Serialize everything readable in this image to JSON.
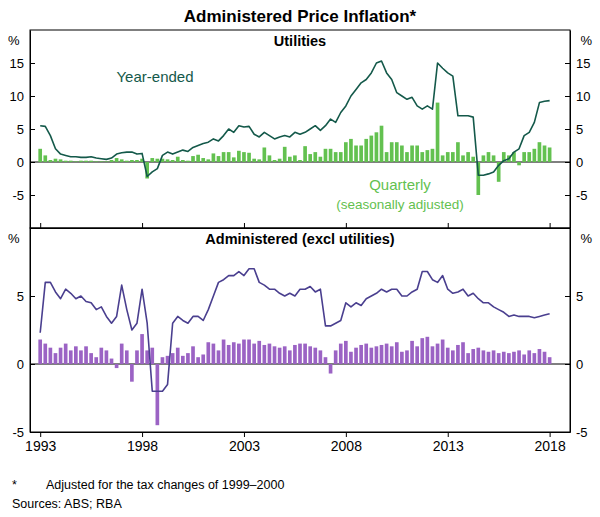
{
  "title": "Administered Price Inflation*",
  "footnote": {
    "marker": "*",
    "text": "Adjusted for the tax changes of 1999–2000"
  },
  "sources": "Sources: ABS; RBA",
  "chart_data": [
    {
      "type": "line",
      "title": "Utilities",
      "ylabel": "%",
      "grid": false,
      "tick_labels": "y",
      "xlim": [
        1992.5,
        2019
      ],
      "xticks": [
        1993,
        1998,
        2003,
        2008,
        2013,
        2018
      ],
      "ylim": [
        -10,
        20
      ],
      "yticks": [
        -5,
        0,
        5,
        10,
        15
      ],
      "x": [
        1993,
        1993.25,
        1993.5,
        1993.75,
        1994,
        1994.25,
        1994.5,
        1994.75,
        1995,
        1995.25,
        1995.5,
        1995.75,
        1996,
        1996.25,
        1996.5,
        1996.75,
        1997,
        1997.25,
        1997.5,
        1997.75,
        1998,
        1998.25,
        1998.5,
        1998.75,
        1999,
        1999.25,
        1999.5,
        1999.75,
        2000,
        2000.25,
        2000.5,
        2000.75,
        2001,
        2001.25,
        2001.5,
        2001.75,
        2002,
        2002.25,
        2002.5,
        2002.75,
        2003,
        2003.25,
        2003.5,
        2003.75,
        2004,
        2004.25,
        2004.5,
        2004.75,
        2005,
        2005.25,
        2005.5,
        2005.75,
        2006,
        2006.25,
        2006.5,
        2006.75,
        2007,
        2007.25,
        2007.5,
        2007.75,
        2008,
        2008.25,
        2008.5,
        2008.75,
        2009,
        2009.25,
        2009.5,
        2009.75,
        2010,
        2010.25,
        2010.5,
        2010.75,
        2011,
        2011.25,
        2011.5,
        2011.75,
        2012,
        2012.25,
        2012.5,
        2012.75,
        2013,
        2013.25,
        2013.5,
        2013.75,
        2014,
        2014.25,
        2014.5,
        2014.75,
        2015,
        2015.25,
        2015.5,
        2015.75,
        2016,
        2016.25,
        2016.5,
        2016.75,
        2017,
        2017.25,
        2017.5,
        2017.75,
        2018
      ],
      "series": [
        {
          "name": "Year-ended",
          "type": "line",
          "color": "#14594a",
          "values": [
            5.5,
            5.4,
            4.0,
            2.0,
            1.2,
            1.0,
            0.8,
            0.8,
            0.7,
            0.7,
            0.8,
            0.6,
            0.5,
            0.4,
            0.6,
            1.2,
            1.4,
            1.5,
            1.5,
            1.2,
            1.3,
            -2.2,
            -1.5,
            -1.0,
            1.0,
            1.5,
            1.2,
            1.5,
            1.8,
            1.6,
            2.2,
            2.5,
            2.8,
            3.0,
            3.5,
            3.2,
            4.0,
            5.0,
            4.5,
            5.5,
            5.3,
            5.4,
            4.2,
            3.8,
            4.5,
            4.0,
            3.5,
            3.8,
            4.0,
            3.8,
            4.5,
            4.2,
            4.5,
            5.0,
            5.5,
            4.8,
            5.5,
            6.5,
            6.0,
            7.5,
            8.5,
            10.0,
            11.0,
            12.0,
            12.5,
            13.5,
            15.0,
            15.3,
            13.5,
            12.5,
            10.5,
            10.0,
            9.5,
            9.8,
            8.5,
            8.0,
            8.5,
            8.0,
            15.0,
            14.2,
            13.5,
            13.0,
            7.0,
            7.0,
            7.0,
            6.8,
            -2.0,
            -2.0,
            -1.8,
            -1.5,
            -0.5,
            0.2,
            0.5,
            1.5,
            2.0,
            4.0,
            4.5,
            6.0,
            9.0,
            9.2,
            9.3
          ]
        },
        {
          "name": "Quarterly (seasonally adjusted)",
          "type": "bar",
          "color": "#63c150",
          "values": [
            2.0,
            1.0,
            0.3,
            0.5,
            0.4,
            0.2,
            0.2,
            0.1,
            0.2,
            0.2,
            0.2,
            0.1,
            0.1,
            0.1,
            0.3,
            0.6,
            0.4,
            0.2,
            0.3,
            0.3,
            0.5,
            -2.5,
            0.6,
            0.5,
            0.5,
            0.4,
            0.3,
            0.8,
            0.3,
            0.2,
            0.9,
            1.1,
            0.6,
            0.4,
            1.3,
            0.9,
            1.5,
            1.5,
            0.7,
            1.7,
            1.5,
            1.4,
            0.5,
            0.4,
            2.2,
            1.0,
            0.3,
            0.5,
            2.3,
            0.8,
            1.0,
            0.3,
            2.4,
            1.2,
            1.5,
            0.8,
            2.0,
            2.0,
            1.5,
            1.5,
            3.0,
            3.5,
            2.5,
            2.5,
            3.5,
            4.0,
            4.5,
            5.5,
            1.5,
            3.0,
            3.0,
            2.5,
            1.5,
            2.5,
            2.5,
            1.5,
            1.8,
            2.0,
            9.0,
            1.0,
            1.5,
            1.5,
            3.0,
            1.0,
            1.5,
            0.8,
            -5.0,
            1.0,
            1.5,
            1.0,
            -3.0,
            1.5,
            1.0,
            1.5,
            -0.5,
            1.5,
            1.5,
            2.0,
            3.0,
            2.5,
            2.2
          ]
        }
      ]
    },
    {
      "type": "line",
      "title": "Administered (excl utilities)",
      "ylabel": "%",
      "grid": false,
      "xlim": [
        1992.5,
        2019
      ],
      "xticks": [
        1993,
        1998,
        2003,
        2008,
        2013,
        2018
      ],
      "ylim": [
        -5,
        10
      ],
      "yticks": [
        -5,
        0,
        5
      ],
      "x": [
        1993,
        1993.25,
        1993.5,
        1993.75,
        1994,
        1994.25,
        1994.5,
        1994.75,
        1995,
        1995.25,
        1995.5,
        1995.75,
        1996,
        1996.25,
        1996.5,
        1996.75,
        1997,
        1997.25,
        1997.5,
        1997.75,
        1998,
        1998.25,
        1998.5,
        1998.75,
        1999,
        1999.25,
        1999.5,
        1999.75,
        2000,
        2000.25,
        2000.5,
        2000.75,
        2001,
        2001.25,
        2001.5,
        2001.75,
        2002,
        2002.25,
        2002.5,
        2002.75,
        2003,
        2003.25,
        2003.5,
        2003.75,
        2004,
        2004.25,
        2004.5,
        2004.75,
        2005,
        2005.25,
        2005.5,
        2005.75,
        2006,
        2006.25,
        2006.5,
        2006.75,
        2007,
        2007.25,
        2007.5,
        2007.75,
        2008,
        2008.25,
        2008.5,
        2008.75,
        2009,
        2009.25,
        2009.5,
        2009.75,
        2010,
        2010.25,
        2010.5,
        2010.75,
        2011,
        2011.25,
        2011.5,
        2011.75,
        2012,
        2012.25,
        2012.5,
        2012.75,
        2013,
        2013.25,
        2013.5,
        2013.75,
        2014,
        2014.25,
        2014.5,
        2014.75,
        2015,
        2015.25,
        2015.5,
        2015.75,
        2016,
        2016.25,
        2016.5,
        2016.75,
        2017,
        2017.25,
        2017.5,
        2017.75,
        2018
      ],
      "series": [
        {
          "type": "line",
          "color": "#4a3f8f",
          "values": [
            2.3,
            6.0,
            6.0,
            5.3,
            4.8,
            5.5,
            5.2,
            4.8,
            5.0,
            4.6,
            4.5,
            4.0,
            4.2,
            3.5,
            3.0,
            3.5,
            5.8,
            4.0,
            2.5,
            3.0,
            5.5,
            3.0,
            -2.0,
            -2.0,
            -2.0,
            -1.5,
            3.0,
            3.5,
            3.2,
            3.0,
            3.5,
            3.5,
            3.2,
            4.0,
            5.0,
            6.0,
            6.2,
            6.5,
            6.5,
            6.8,
            6.5,
            7.0,
            7.0,
            6.0,
            5.8,
            5.5,
            5.5,
            5.2,
            5.0,
            5.2,
            5.0,
            5.5,
            5.5,
            5.7,
            5.3,
            5.5,
            2.8,
            2.8,
            3.0,
            3.2,
            4.5,
            4.2,
            4.5,
            4.3,
            4.8,
            5.0,
            5.2,
            5.5,
            5.3,
            5.5,
            5.5,
            5.0,
            5.0,
            5.3,
            5.5,
            6.8,
            6.8,
            6.2,
            6.0,
            6.5,
            5.5,
            5.2,
            5.3,
            5.5,
            5.0,
            5.2,
            4.8,
            4.5,
            4.5,
            4.2,
            4.0,
            3.8,
            3.5,
            3.6,
            3.5,
            3.5,
            3.5,
            3.4,
            3.5,
            3.6,
            3.7
          ]
        },
        {
          "type": "bar",
          "color": "#9b63c4",
          "values": [
            1.8,
            1.5,
            1.2,
            0.8,
            1.2,
            1.5,
            1.0,
            1.3,
            1.0,
            1.3,
            0.8,
            0.5,
            1.2,
            1.0,
            0.4,
            -0.3,
            1.5,
            1.0,
            -1.3,
            1.0,
            2.2,
            1.0,
            1.2,
            -4.5,
            0.5,
            0.6,
            0.8,
            1.2,
            0.6,
            0.8,
            1.3,
            0.5,
            0.7,
            1.6,
            1.5,
            1.0,
            1.8,
            1.4,
            1.6,
            1.5,
            1.8,
            1.8,
            1.5,
            1.7,
            1.4,
            1.5,
            1.3,
            1.2,
            1.3,
            1.0,
            1.4,
            1.5,
            1.5,
            1.3,
            1.2,
            1.0,
            0.5,
            -0.7,
            1.0,
            1.5,
            1.7,
            0.9,
            1.2,
            1.4,
            1.5,
            1.2,
            1.3,
            1.4,
            1.5,
            1.3,
            1.6,
            0.9,
            1.0,
            1.7,
            1.3,
            1.9,
            2.0,
            1.3,
            1.5,
            1.8,
            1.2,
            1.0,
            1.4,
            1.6,
            0.8,
            1.1,
            1.2,
            1.0,
            0.9,
            1.0,
            0.8,
            0.9,
            0.8,
            0.9,
            1.0,
            0.7,
            1.0,
            0.8,
            1.1,
            0.9,
            0.5
          ]
        }
      ]
    }
  ]
}
